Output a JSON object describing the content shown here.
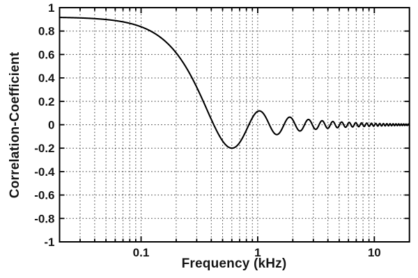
{
  "chart_data": {
    "type": "line",
    "title": "",
    "xlabel": "Frequency (kHz)",
    "ylabel": "Correlation-Coefficient",
    "x_axis": {
      "scale": "log",
      "min_khz": 0.02,
      "max_khz": 20,
      "major_ticks": [
        {
          "value": 0.1,
          "label": "0.1"
        },
        {
          "value": 1,
          "label": "1"
        },
        {
          "value": 10,
          "label": "10"
        }
      ],
      "minor_ticks": [
        0.03,
        0.04,
        0.05,
        0.06,
        0.07,
        0.08,
        0.09,
        0.2,
        0.3,
        0.4,
        0.5,
        0.6,
        0.7,
        0.8,
        0.9,
        2,
        3,
        4,
        5,
        6,
        7,
        8,
        9
      ]
    },
    "y_axis": {
      "min": -1,
      "max": 1,
      "tick_step": 0.2,
      "ticks": [
        {
          "value": 1,
          "label": "1"
        },
        {
          "value": 0.8,
          "label": "0.8"
        },
        {
          "value": 0.6,
          "label": "0.6"
        },
        {
          "value": 0.4,
          "label": "0.4"
        },
        {
          "value": 0.2,
          "label": "0.2"
        },
        {
          "value": 0,
          "label": "0"
        },
        {
          "value": -0.2,
          "label": "-0.2"
        },
        {
          "value": -0.4,
          "label": "-0.4"
        },
        {
          "value": -0.6,
          "label": "-0.6"
        },
        {
          "value": -0.8,
          "label": "-0.8"
        },
        {
          "value": -1,
          "label": "-1"
        }
      ]
    },
    "grid": {
      "style": "dotted",
      "color": "#3d3d3d"
    },
    "frame_color": "#000000",
    "line_color": "#000000",
    "series": [
      {
        "name": "correlation-coefficient",
        "model": {
          "type": "sinc",
          "amplitude": 0.92,
          "first_zero_khz": 0.42
        },
        "key_points": [
          {
            "f_khz": 0.02,
            "rho": 0.92
          },
          {
            "f_khz": 0.05,
            "rho": 0.9
          },
          {
            "f_khz": 0.1,
            "rho": 0.84
          },
          {
            "f_khz": 0.2,
            "rho": 0.61
          },
          {
            "f_khz": 0.3,
            "rho": 0.32
          },
          {
            "f_khz": 0.42,
            "rho": 0.0
          },
          {
            "f_khz": 0.6,
            "rho": -0.2
          },
          {
            "f_khz": 0.84,
            "rho": 0.0
          },
          {
            "f_khz": 1.03,
            "rho": 0.12
          },
          {
            "f_khz": 1.26,
            "rho": 0.0
          },
          {
            "f_khz": 1.46,
            "rho": -0.08
          },
          {
            "f_khz": 1.68,
            "rho": 0.0
          },
          {
            "f_khz": 1.88,
            "rho": 0.07
          },
          {
            "f_khz": 2.3,
            "rho": -0.05
          },
          {
            "f_khz": 2.72,
            "rho": 0.04
          },
          {
            "f_khz": 10,
            "rho": 0.0
          },
          {
            "f_khz": 20,
            "rho": 0.0
          }
        ]
      }
    ]
  }
}
